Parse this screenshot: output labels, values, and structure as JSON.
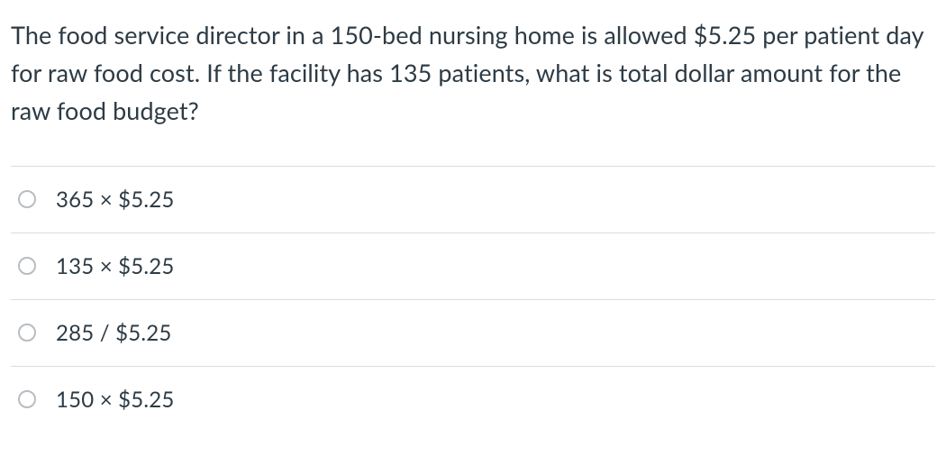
{
  "question": {
    "text": "The food service director in a 150-bed nursing home is allowed $5.25 per patient day for raw food cost. If the facility has 135 patients, what is total dollar amount for the raw food budget?"
  },
  "options": [
    {
      "label": "365 × $5.25"
    },
    {
      "label": "135 × $5.25"
    },
    {
      "label": "285 / $5.25"
    },
    {
      "label": "150 × $5.25"
    }
  ],
  "colors": {
    "text": "#2d3b45",
    "border": "#d9dde0",
    "radio_border": "#b8bdc2",
    "background": "#ffffff"
  },
  "typography": {
    "question_fontsize": 27,
    "option_fontsize": 24,
    "line_height": 1.55
  }
}
